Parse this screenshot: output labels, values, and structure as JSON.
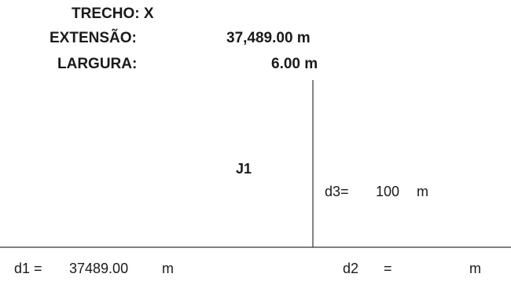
{
  "header": {
    "trecho": "TRECHO: X",
    "extensao_label": "EXTENSÃO:",
    "extensao_value": "37,489.00 m",
    "largura_label": "LARGURA:",
    "largura_value": "6.00 m"
  },
  "diagram": {
    "junction_label": "J1",
    "d3_label": "d3=",
    "d3_value": "100",
    "d3_unit": "m",
    "d1_label": "d1  =",
    "d1_value": "37489.00",
    "d1_unit": "m",
    "d2_label": "d2",
    "d2_eq": "=",
    "d2_unit": "m"
  }
}
